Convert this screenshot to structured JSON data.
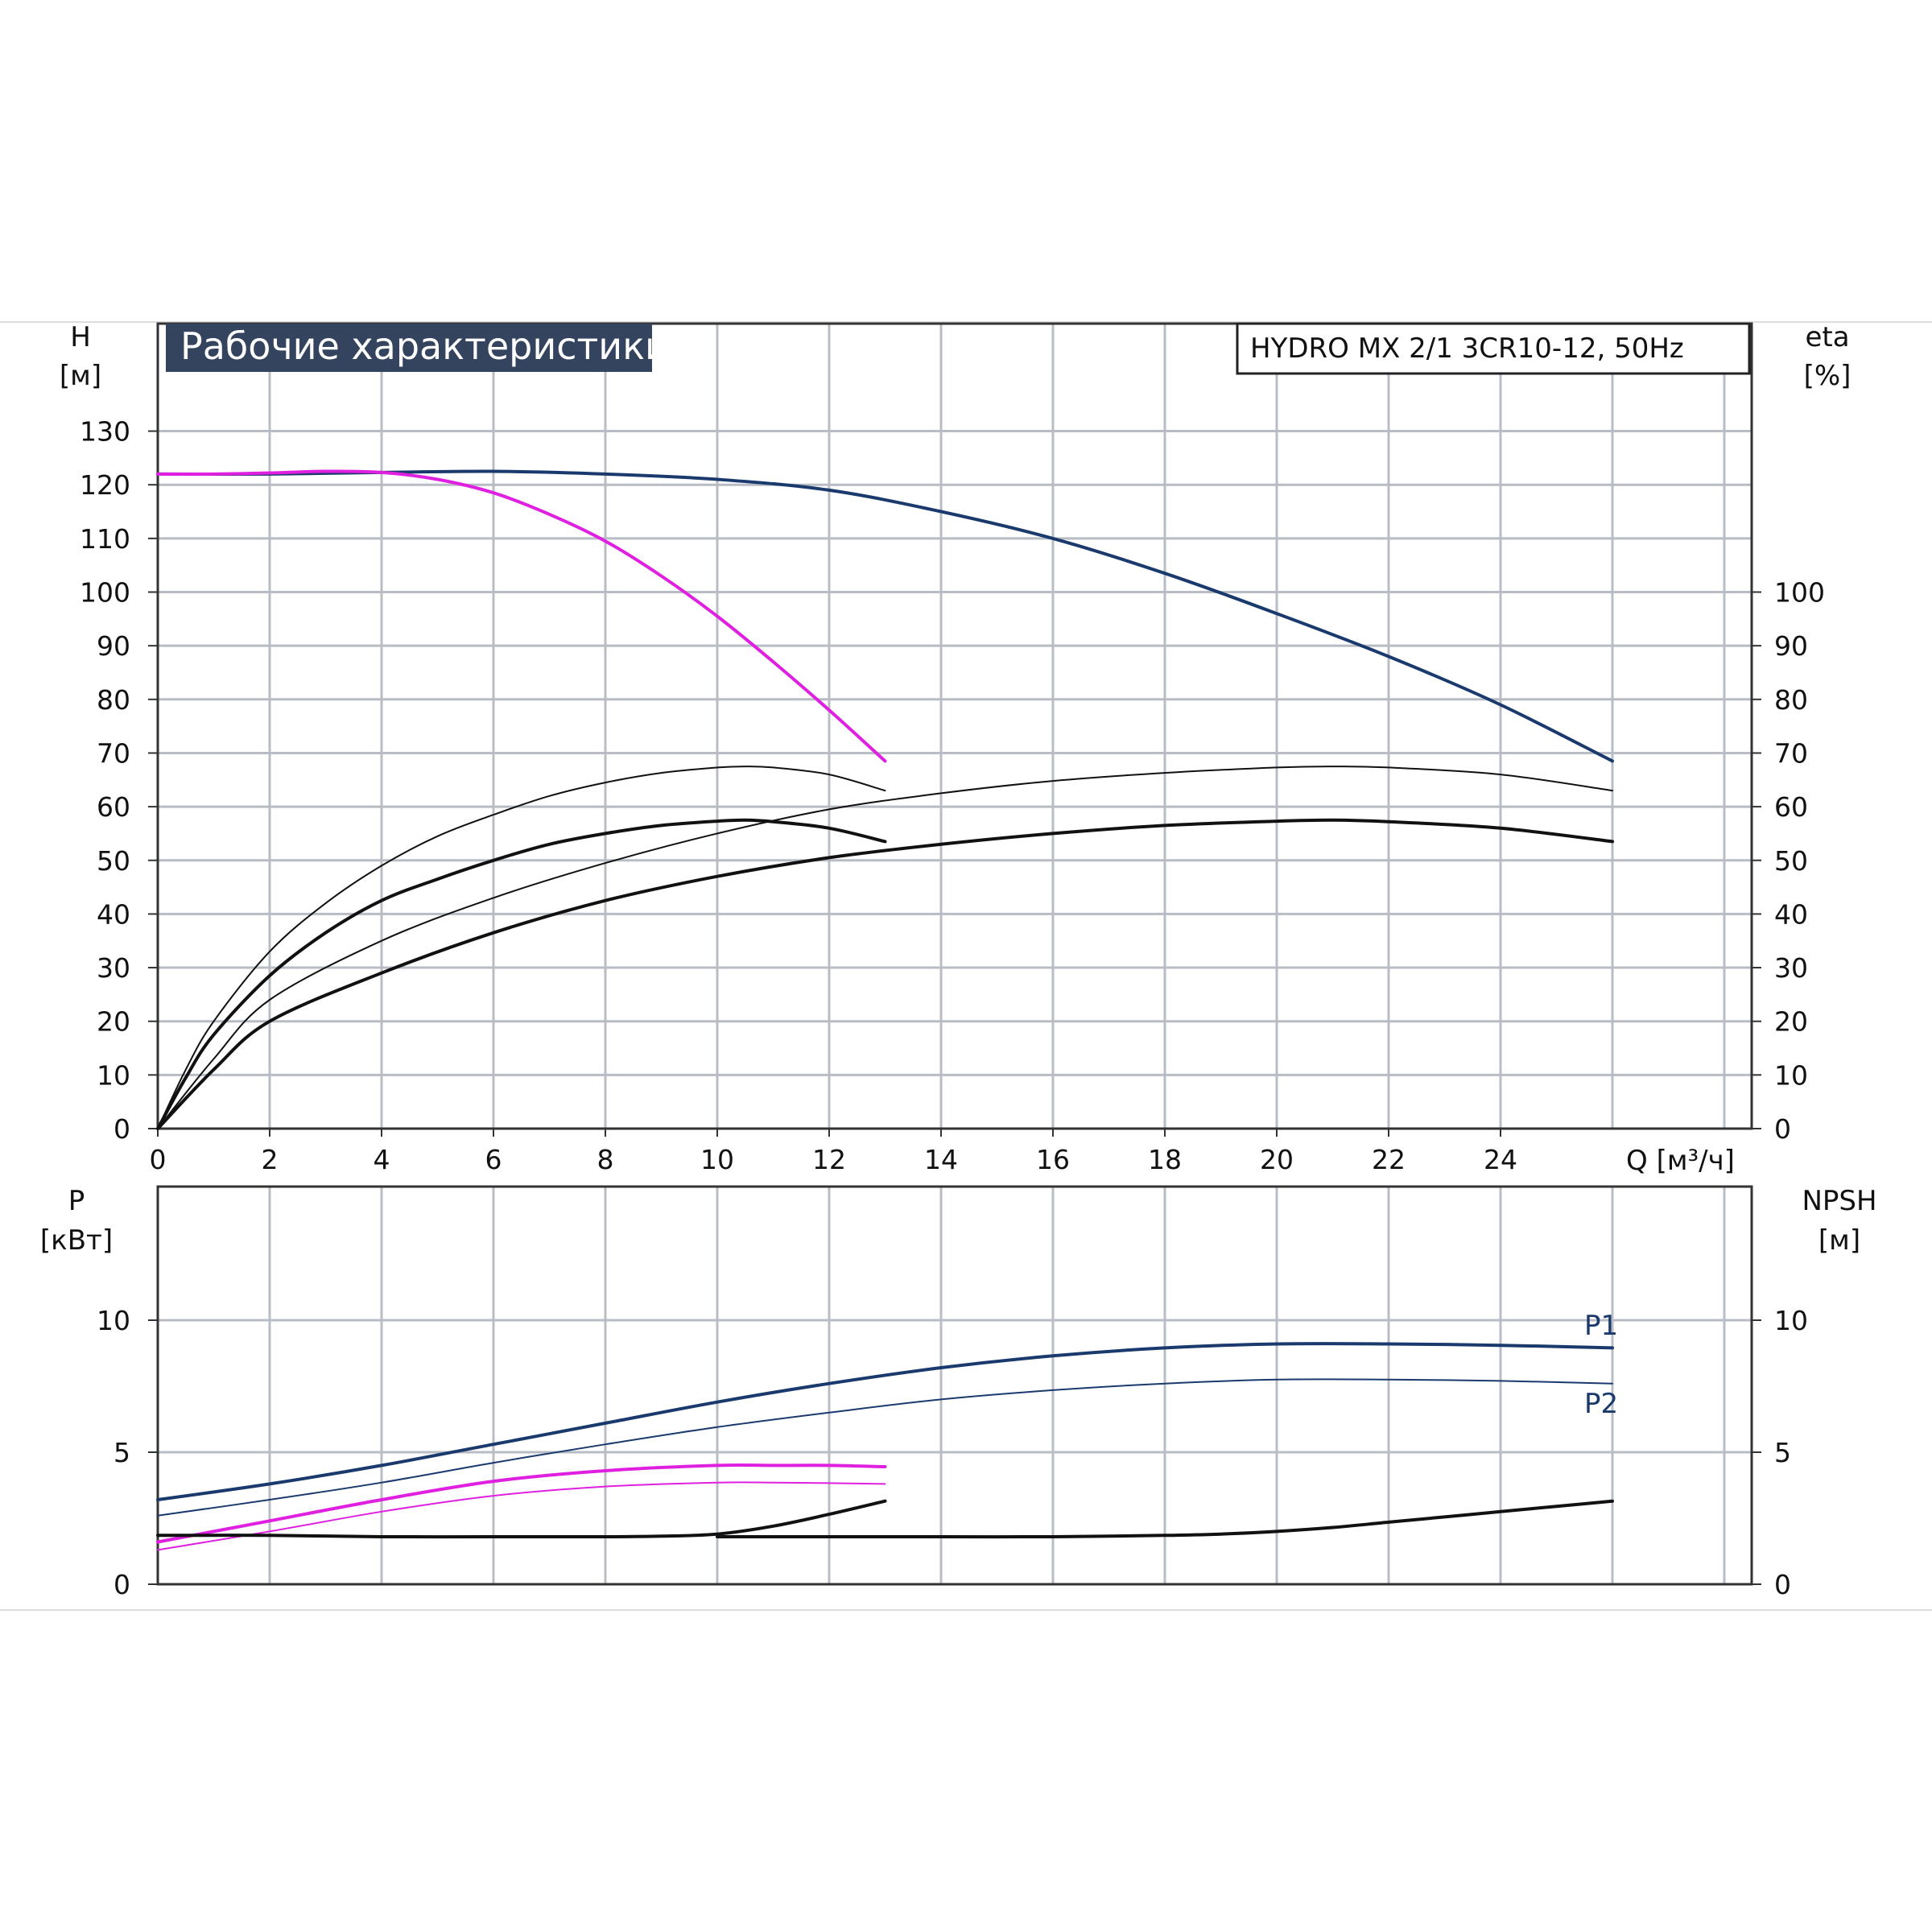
{
  "chart_data": [
    {
      "type": "line",
      "title": "Рабочие характеристики",
      "model": "HYDRO MX 2/1 3CR10-12, 50Hz",
      "y_left_label": [
        "H",
        "[м]"
      ],
      "y_right_label": [
        "eta",
        "[%]"
      ],
      "x_label": "Q [м³/ч]",
      "xlim": [
        0,
        28
      ],
      "x_ticks": [
        "0",
        "2",
        "4",
        "6",
        "8",
        "10",
        "12",
        "14",
        "16",
        "18",
        "20",
        "22",
        "24"
      ],
      "ylim": [
        0,
        140
      ],
      "y_left_ticks": [
        "0",
        "10",
        "20",
        "30",
        "40",
        "50",
        "60",
        "70",
        "80",
        "90",
        "100",
        "110",
        "120",
        "130"
      ],
      "y_right_ticks": [
        "0",
        "10",
        "20",
        "30",
        "40",
        "50",
        "60",
        "70",
        "80",
        "90",
        "100"
      ],
      "grid": true,
      "colors": {
        "blue": "#1a3a6e",
        "magenta": "#e020e0",
        "black": "#111111"
      },
      "series": [
        {
          "axis": "H",
          "color": "#1a3a6e",
          "width": 4,
          "x": [
            0,
            2,
            4,
            6,
            8,
            10,
            12,
            14,
            16,
            18,
            20,
            22,
            24,
            26
          ],
          "y": [
            122,
            122,
            122.3,
            122.5,
            122,
            121,
            119,
            115,
            110,
            103.5,
            96,
            88,
            79,
            68.5
          ]
        },
        {
          "axis": "H",
          "color": "#e020e0",
          "width": 4,
          "x": [
            0,
            1,
            2,
            3,
            4,
            5,
            6,
            7,
            8,
            9,
            10,
            11,
            12,
            13
          ],
          "y": [
            122,
            122,
            122.2,
            122.5,
            122.3,
            121,
            118.5,
            114.5,
            109.5,
            103,
            95.5,
            87,
            78,
            68.5
          ]
        },
        {
          "axis": "eta",
          "color": "#111111",
          "width": 2,
          "x": [
            0,
            0.5,
            1,
            2,
            3,
            4,
            5,
            6,
            7,
            8,
            9,
            10,
            10.5,
            11,
            12,
            13
          ],
          "y": [
            0,
            11,
            20,
            33,
            42,
            49,
            54.5,
            58.5,
            62,
            64.5,
            66.3,
            67.3,
            67.5,
            67.3,
            66,
            63
          ]
        },
        {
          "axis": "eta",
          "color": "#111111",
          "width": 4,
          "x": [
            0,
            0.5,
            1,
            2,
            3,
            4,
            5,
            6,
            7,
            8,
            9,
            10,
            10.5,
            11,
            12,
            13
          ],
          "y": [
            0,
            9.5,
            17.5,
            28.5,
            36.5,
            42.5,
            46.5,
            50,
            53,
            55,
            56.5,
            57.3,
            57.5,
            57.2,
            56,
            53.5
          ]
        },
        {
          "axis": "eta",
          "color": "#111111",
          "width": 2,
          "x": [
            0,
            1,
            2,
            4,
            6,
            8,
            10,
            12,
            14,
            16,
            18,
            20,
            21,
            22,
            24,
            26
          ],
          "y": [
            0,
            13,
            24,
            35,
            43,
            49.5,
            55,
            59.5,
            62.5,
            64.8,
            66.3,
            67.3,
            67.5,
            67.3,
            66,
            63
          ]
        },
        {
          "axis": "eta",
          "color": "#111111",
          "width": 4,
          "x": [
            0,
            1,
            2,
            4,
            6,
            8,
            10,
            12,
            14,
            16,
            18,
            20,
            21,
            22,
            24,
            26
          ],
          "y": [
            0,
            11,
            20,
            29,
            36.5,
            42.5,
            47,
            50.5,
            53,
            55,
            56.5,
            57.3,
            57.5,
            57.2,
            56,
            53.5
          ]
        }
      ]
    },
    {
      "type": "line",
      "y_left_label": [
        "P",
        "[кВт]"
      ],
      "y_right_label": [
        "NPSH",
        "[м]"
      ],
      "xlim": [
        0,
        28
      ],
      "ylim": [
        0,
        15
      ],
      "y_left_ticks": [
        "0",
        "5",
        "10"
      ],
      "y_right_ticks": [
        "0",
        "5",
        "10"
      ],
      "grid": true,
      "series": [
        {
          "name": "P1",
          "axis": "P",
          "color": "#1a3a6e",
          "width": 4,
          "x": [
            0,
            2,
            4,
            6,
            8,
            10,
            12,
            14,
            16,
            18,
            20,
            22,
            24,
            26
          ],
          "y": [
            3.2,
            3.8,
            4.5,
            5.3,
            6.1,
            6.9,
            7.6,
            8.2,
            8.65,
            8.95,
            9.1,
            9.1,
            9.05,
            8.95
          ]
        },
        {
          "name": "P2",
          "axis": "P",
          "color": "#1a3a6e",
          "width": 2,
          "x": [
            0,
            2,
            4,
            6,
            8,
            10,
            12,
            14,
            16,
            18,
            20,
            22,
            24,
            26
          ],
          "y": [
            2.6,
            3.2,
            3.85,
            4.6,
            5.3,
            5.95,
            6.5,
            7.0,
            7.35,
            7.6,
            7.75,
            7.75,
            7.7,
            7.6
          ]
        },
        {
          "axis": "P",
          "color": "#e020e0",
          "width": 4,
          "x": [
            0,
            2,
            4,
            6,
            8,
            10,
            11,
            12,
            13
          ],
          "y": [
            1.6,
            2.4,
            3.2,
            3.9,
            4.3,
            4.5,
            4.5,
            4.5,
            4.45
          ]
        },
        {
          "axis": "P",
          "color": "#e020e0",
          "width": 2,
          "x": [
            0,
            2,
            4,
            6,
            8,
            10,
            11,
            12,
            13
          ],
          "y": [
            1.3,
            2.0,
            2.75,
            3.35,
            3.7,
            3.85,
            3.85,
            3.83,
            3.8
          ]
        },
        {
          "axis": "NPSH",
          "color": "#111111",
          "width": 4,
          "x": [
            0,
            2,
            4,
            6,
            8,
            9,
            10,
            11,
            12,
            13
          ],
          "y": [
            1.85,
            1.85,
            1.8,
            1.8,
            1.8,
            1.82,
            1.9,
            2.2,
            2.65,
            3.15
          ]
        },
        {
          "axis": "NPSH",
          "color": "#111111",
          "width": 4,
          "x": [
            10,
            12,
            14,
            16,
            18,
            19,
            20,
            21,
            22,
            23,
            24,
            25,
            26
          ],
          "y": [
            1.8,
            1.8,
            1.8,
            1.8,
            1.85,
            1.9,
            2.0,
            2.15,
            2.35,
            2.55,
            2.75,
            2.95,
            3.15
          ]
        }
      ]
    }
  ]
}
